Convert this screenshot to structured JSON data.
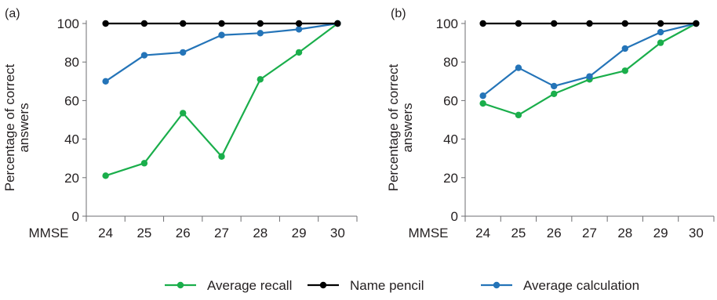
{
  "chart_data": [
    {
      "type": "line",
      "panel_label": "(a)",
      "title": "",
      "xlabel": "MMSE",
      "ylabel_lines": [
        "Percentage of correct",
        "answers"
      ],
      "categories": [
        "24",
        "25",
        "26",
        "27",
        "28",
        "29",
        "30"
      ],
      "ylim": [
        0,
        100
      ],
      "yticks": [
        "0",
        "20",
        "40",
        "60",
        "80",
        "100"
      ],
      "grid": false,
      "series": [
        {
          "name": "Average recall",
          "color": "#1aae4b",
          "values": [
            21,
            27.5,
            53.5,
            31,
            71,
            85,
            100
          ]
        },
        {
          "name": "Name pencil",
          "color": "#000000",
          "values": [
            100,
            100,
            100,
            100,
            100,
            100,
            100
          ]
        },
        {
          "name": "Average calculation",
          "color": "#2474b8",
          "values": [
            70,
            83.5,
            85,
            94,
            95,
            97,
            100
          ]
        }
      ]
    },
    {
      "type": "line",
      "panel_label": "(b)",
      "title": "",
      "xlabel": "MMSE",
      "ylabel_lines": [
        "Percentage of correct",
        "answers"
      ],
      "categories": [
        "24",
        "25",
        "26",
        "27",
        "28",
        "29",
        "30"
      ],
      "ylim": [
        0,
        100
      ],
      "yticks": [
        "0",
        "20",
        "40",
        "60",
        "80",
        "100"
      ],
      "grid": false,
      "series": [
        {
          "name": "Average recall",
          "color": "#1aae4b",
          "values": [
            58.5,
            52.5,
            63.5,
            71,
            75.5,
            90,
            100
          ]
        },
        {
          "name": "Name pencil",
          "color": "#000000",
          "values": [
            100,
            100,
            100,
            100,
            100,
            100,
            100
          ]
        },
        {
          "name": "Average calculation",
          "color": "#2474b8",
          "values": [
            62.5,
            77,
            67.5,
            72.5,
            87,
            95.5,
            100
          ]
        }
      ]
    }
  ],
  "legend": {
    "placement": "bottom-center",
    "items": [
      {
        "label": "Average recall",
        "color": "#1aae4b"
      },
      {
        "label": "Name pencil",
        "color": "#000000"
      },
      {
        "label": "Average calculation",
        "color": "#2474b8"
      }
    ]
  }
}
